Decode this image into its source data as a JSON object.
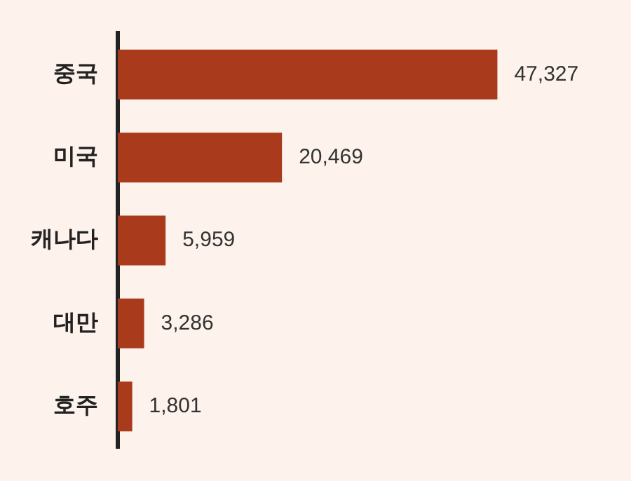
{
  "chart_data": {
    "type": "bar",
    "orientation": "horizontal",
    "categories": [
      "중국",
      "미국",
      "캐나다",
      "대만",
      "호주"
    ],
    "values": [
      47327,
      20469,
      5959,
      3286,
      1801
    ],
    "value_labels": [
      "47,327",
      "20,469",
      "5,959",
      "3,286",
      "1,801"
    ],
    "color": "#a93a1c",
    "tick_labels": "y"
  }
}
